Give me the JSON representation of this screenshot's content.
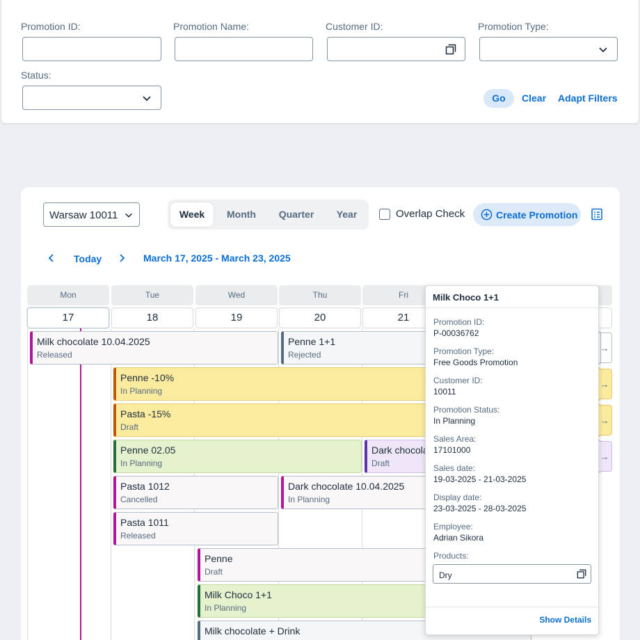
{
  "filters": {
    "promotion_id_label": "Promotion ID:",
    "promotion_name_label": "Promotion Name:",
    "customer_id_label": "Customer ID:",
    "promotion_type_label": "Promotion Type:",
    "status_label": "Status:",
    "go": "Go",
    "clear": "Clear",
    "adapt": "Adapt Filters"
  },
  "toolbar": {
    "location": "Warsaw 10011",
    "views": [
      "Week",
      "Month",
      "Quarter",
      "Year"
    ],
    "active_view": "Week",
    "overlap_check": "Overlap Check",
    "create_promotion": "Create Promotion"
  },
  "nav": {
    "today": "Today",
    "range": "March 17, 2025 - March 23, 2025"
  },
  "days": [
    {
      "name": "Mon",
      "num": "17"
    },
    {
      "name": "Tue",
      "num": "18"
    },
    {
      "name": "Wed",
      "num": "19"
    },
    {
      "name": "Thu",
      "num": "20"
    },
    {
      "name": "Fri",
      "num": "21"
    }
  ],
  "events": [
    {
      "name": "Milk chocolate 10.04.2025",
      "status": "Released"
    },
    {
      "name": "Penne 1+1",
      "status": "Rejected"
    },
    {
      "name": "Penne -10%",
      "status": "In Planning"
    },
    {
      "name": "Pasta -15%",
      "status": "Draft"
    },
    {
      "name": "Penne 02.05",
      "status": "In Planning"
    },
    {
      "name": "Dark chocolate",
      "status": "Draft"
    },
    {
      "name": "Pasta 1012",
      "status": "Cancelled"
    },
    {
      "name": "Dark chocolate 10.04.2025",
      "status": "In Planning"
    },
    {
      "name": "Pasta 1011",
      "status": "Released"
    },
    {
      "name": "Penne",
      "status": "Draft"
    },
    {
      "name": "Milk Choco 1+1",
      "status": "In Planning"
    },
    {
      "name": "Milk chocolate + Drink",
      "status": ""
    }
  ],
  "popover": {
    "title": "Milk Choco 1+1",
    "promotion_id_label": "Promotion ID:",
    "promotion_id": "P-00036762",
    "promotion_type_label": "Promotion Type:",
    "promotion_type": "Free Goods Promotion",
    "customer_id_label": "Customer ID:",
    "customer_id": "10011",
    "status_label": "Promotion Status:",
    "status": "In Planning",
    "sales_area_label": "Sales Area:",
    "sales_area": "17101000",
    "sales_date_label": "Sales date:",
    "sales_date": "19-03-2025 - 21-03-2025",
    "display_date_label": "Display date:",
    "display_date": "23-03-2025 - 28-03-2025",
    "employee_label": "Employee:",
    "employee": "Adrian Sikora",
    "products_label": "Products:",
    "products": "Dry",
    "show_details": "Show Details"
  },
  "colors": {
    "accent": "#0a6ed1",
    "now_line": "#b3149d"
  }
}
